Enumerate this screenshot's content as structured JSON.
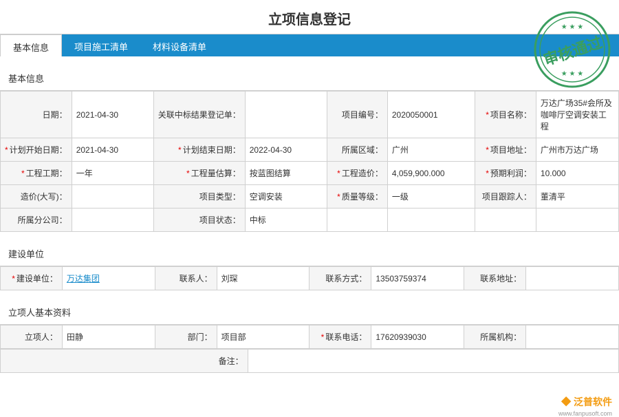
{
  "title": "立项信息登记",
  "tabs": [
    {
      "label": "基本信息",
      "active": true
    },
    {
      "label": "项目施工清单",
      "active": false
    },
    {
      "label": "材料设备清单",
      "active": false
    }
  ],
  "sections": {
    "basic": {
      "header": "基本信息",
      "rows": [
        [
          {
            "label": "日期：",
            "value": "2021-04-30",
            "required": false
          },
          {
            "label": "关联中标结果登记单：",
            "value": "",
            "required": false
          },
          {
            "label": "项目编号：",
            "value": "2020050001",
            "required": false
          },
          {
            "label": "项目名称：",
            "value": "万达广场35#会所及咖啡厅空调安装工程",
            "required": true
          }
        ],
        [
          {
            "label": "计划开始日期：",
            "value": "2021-04-30",
            "required": true
          },
          {
            "label": "计划结束日期：",
            "value": "2022-04-30",
            "required": true
          },
          {
            "label": "所属区域：",
            "value": "广州",
            "required": false
          },
          {
            "label": "项目地址：",
            "value": "广州市万达广场",
            "required": true
          }
        ],
        [
          {
            "label": "工程工期：",
            "value": "一年",
            "required": true
          },
          {
            "label": "工程量估算：",
            "value": "按蓝图结算",
            "required": true
          },
          {
            "label": "工程造价：",
            "value": "4,059,900.000",
            "required": true
          },
          {
            "label": "预期利润：",
            "value": "10.000",
            "required": true
          }
        ],
        [
          {
            "label": "造价(大写)：",
            "value": "",
            "required": false
          },
          {
            "label": "项目类型：",
            "value": "空调安装",
            "required": false
          },
          {
            "label": "质量等级：",
            "value": "一级",
            "required": true
          },
          {
            "label": "项目跟踪人：",
            "value": "董清平",
            "required": false
          }
        ],
        [
          {
            "label": "所属分公司：",
            "value": "",
            "required": false
          },
          {
            "label": "项目状态：",
            "value": "中标",
            "required": false
          },
          {
            "label": "",
            "value": "",
            "required": false
          },
          {
            "label": "",
            "value": "",
            "required": false
          }
        ]
      ]
    },
    "construction": {
      "header": "建设单位",
      "rows": [
        [
          {
            "label": "建设单位：",
            "value": "万达集团",
            "required": true,
            "link": true
          },
          {
            "label": "联系人：",
            "value": "刘琛",
            "required": false
          },
          {
            "label": "联系方式：",
            "value": "13503759374",
            "required": false
          },
          {
            "label": "联系地址：",
            "value": "",
            "required": false
          }
        ]
      ]
    },
    "person": {
      "header": "立项人基本资料",
      "rows": [
        [
          {
            "label": "立项人：",
            "value": "田静",
            "required": false
          },
          {
            "label": "部门：",
            "value": "项目部",
            "required": false
          },
          {
            "label": "联系电话：",
            "value": "17620939030",
            "required": true
          },
          {
            "label": "所属机构：",
            "value": "",
            "required": false
          }
        ]
      ],
      "remark_label": "备注："
    }
  },
  "stamp_text": "审核通过",
  "watermark": "泛普软件",
  "watermark_url": "www.fanpusoft.com",
  "colors": {
    "tab_bg": "#1a8ccb",
    "border": "#d0d0d0",
    "required": "#e60000",
    "stamp": "#3a9e5f"
  }
}
